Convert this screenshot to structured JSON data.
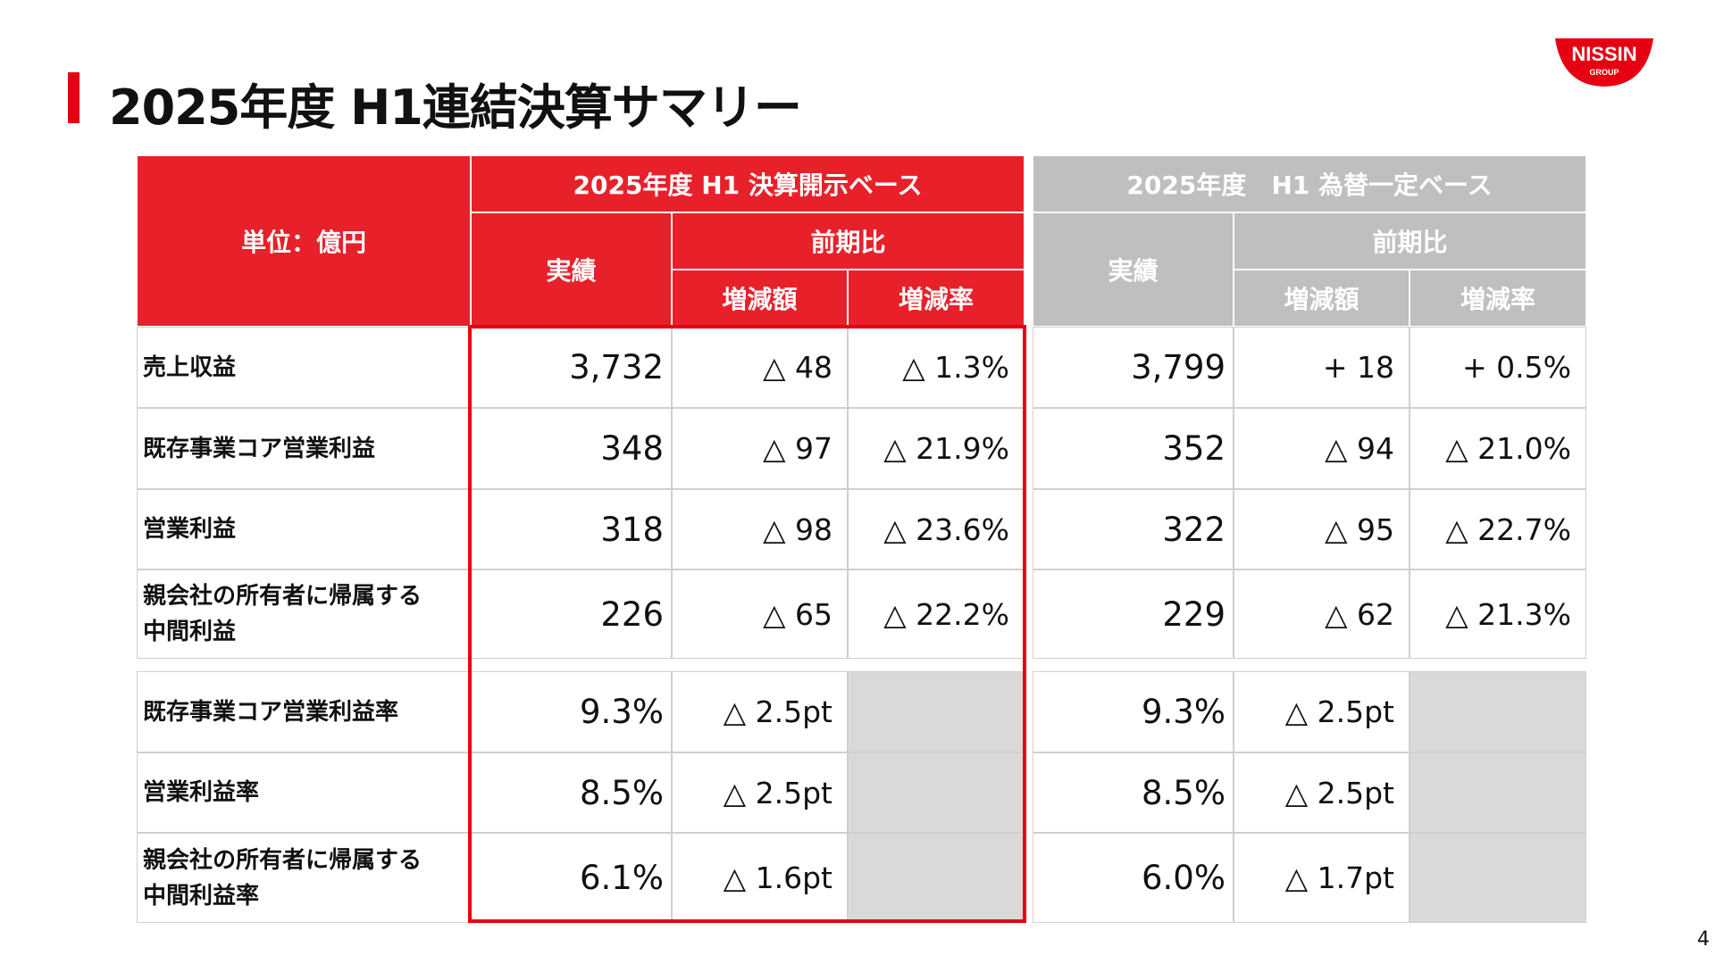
{
  "title": "2025年度 H1連結決算サマリー",
  "logo": {
    "text": "NISSIN",
    "sub": "GROUP",
    "color": "#e60012"
  },
  "page_number": "4",
  "header": {
    "unit": "単位：億円",
    "disclosed_base": "2025年度 H1 決算開示ベース",
    "constant_fx_base": "2025年度　H1 為替一定ベース",
    "actual": "実績",
    "yoy": "前期比",
    "change_amount": "増減額",
    "change_rate": "増減率"
  },
  "rows": [
    {
      "label": "売上収益",
      "disclosed": [
        "3,732",
        "△ 48",
        "△ 1.3%"
      ],
      "fx": [
        "3,799",
        "+ 18",
        "+ 0.5%"
      ]
    },
    {
      "label": "既存事業コア営業利益",
      "disclosed": [
        "348",
        "△ 97",
        "△ 21.9%"
      ],
      "fx": [
        "352",
        "△ 94",
        "△ 21.0%"
      ]
    },
    {
      "label": "営業利益",
      "disclosed": [
        "318",
        "△ 98",
        "△ 23.6%"
      ],
      "fx": [
        "322",
        "△ 95",
        "△ 22.7%"
      ]
    },
    {
      "label": "親会社の所有者に帰属する\n中間利益",
      "disclosed": [
        "226",
        "△ 65",
        "△ 22.2%"
      ],
      "fx": [
        "229",
        "△ 62",
        "△ 21.3%"
      ]
    },
    {
      "label": "既存事業コア営業利益率",
      "disclosed": [
        "9.3%",
        "△ 2.5pt",
        ""
      ],
      "fx": [
        "9.3%",
        "△ 2.5pt",
        ""
      ]
    },
    {
      "label": "営業利益率",
      "disclosed": [
        "8.5%",
        "△ 2.5pt",
        ""
      ],
      "fx": [
        "8.5%",
        "△ 2.5pt",
        ""
      ]
    },
    {
      "label": "親会社の所有者に帰属する\n中間利益率",
      "disclosed": [
        "6.1%",
        "△ 1.6pt",
        ""
      ],
      "fx": [
        "6.0%",
        "△ 1.7pt",
        ""
      ]
    }
  ]
}
